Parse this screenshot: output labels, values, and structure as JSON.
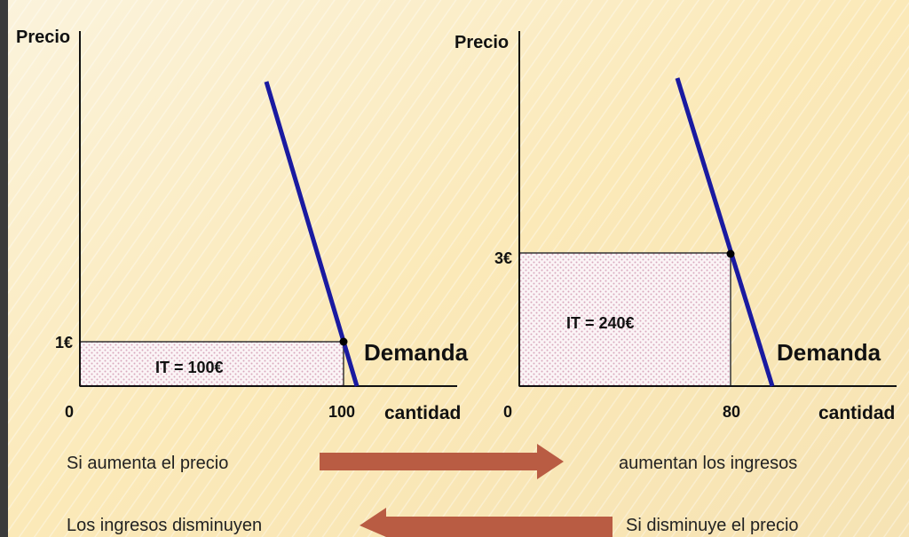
{
  "panels": [
    {
      "y_label": "Precio",
      "price_label": "1€",
      "revenue_label": "IT = 100€",
      "curve_label": "Demanda",
      "origin_label": "0",
      "quantity_label": "100",
      "x_label": "cantidad"
    },
    {
      "y_label": "Precio",
      "price_label": "3€",
      "revenue_label": "IT = 240€",
      "curve_label": "Demanda",
      "origin_label": "0",
      "quantity_label": "80",
      "x_label": "cantidad"
    }
  ],
  "statements": [
    {
      "left": "Si aumenta el precio",
      "right": "aumentan los ingresos"
    },
    {
      "left": "Los ingresos disminuyen",
      "right": "Si disminuye el precio"
    }
  ]
}
